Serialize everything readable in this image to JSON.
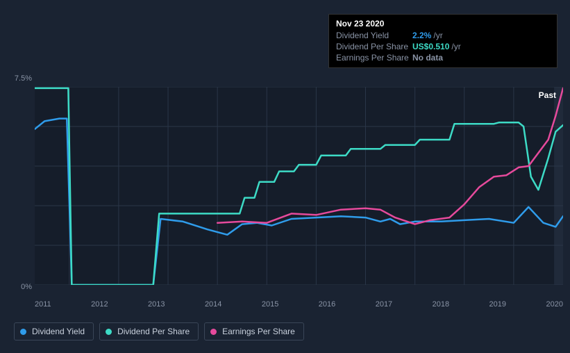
{
  "tooltip": {
    "date": "Nov 23 2020",
    "rows": [
      {
        "label": "Dividend Yield",
        "value": "2.2%",
        "suffix": "/yr",
        "color": "#2f9ceb"
      },
      {
        "label": "Dividend Per Share",
        "value": "US$0.510",
        "suffix": "/yr",
        "color": "#3ddbc6"
      },
      {
        "label": "Earnings Per Share",
        "value": "No data",
        "suffix": "",
        "color": "#8a94a6"
      }
    ]
  },
  "chart": {
    "type": "line",
    "background_color": "#1a2332",
    "plot_bg_left": "#151d2a",
    "plot_bg_right": "#202a3a",
    "grid_color": "#2a3648",
    "text_color": "#8a94a6",
    "past_label": "Past",
    "y_axis": {
      "min": 0,
      "max": 7.5,
      "labels": [
        "7.5%",
        "0%"
      ]
    },
    "x_axis": {
      "labels": [
        "2011",
        "2012",
        "2013",
        "2014",
        "2015",
        "2016",
        "2017",
        "2018",
        "2019",
        "2020"
      ]
    },
    "x_range": [
      2010.3,
      2021.0
    ],
    "series": [
      {
        "name": "Dividend Yield",
        "color": "#2f9ceb",
        "width": 2.5,
        "points": [
          [
            2010.3,
            5.9
          ],
          [
            2010.5,
            6.2
          ],
          [
            2010.8,
            6.3
          ],
          [
            2010.95,
            6.3
          ],
          [
            2011.05,
            0.0
          ],
          [
            2012.7,
            0.0
          ],
          [
            2012.85,
            2.5
          ],
          [
            2013.3,
            2.4
          ],
          [
            2013.8,
            2.1
          ],
          [
            2014.2,
            1.9
          ],
          [
            2014.5,
            2.3
          ],
          [
            2014.8,
            2.35
          ],
          [
            2015.1,
            2.25
          ],
          [
            2015.5,
            2.5
          ],
          [
            2016.0,
            2.55
          ],
          [
            2016.5,
            2.6
          ],
          [
            2017.0,
            2.55
          ],
          [
            2017.3,
            2.4
          ],
          [
            2017.5,
            2.5
          ],
          [
            2017.7,
            2.3
          ],
          [
            2018.0,
            2.4
          ],
          [
            2018.5,
            2.4
          ],
          [
            2019.0,
            2.45
          ],
          [
            2019.5,
            2.5
          ],
          [
            2020.0,
            2.35
          ],
          [
            2020.3,
            2.95
          ],
          [
            2020.6,
            2.35
          ],
          [
            2020.85,
            2.2
          ],
          [
            2021.0,
            2.6
          ]
        ]
      },
      {
        "name": "Dividend Per Share",
        "color": "#3ddbc6",
        "width": 2.5,
        "points": [
          [
            2010.3,
            7.45
          ],
          [
            2010.98,
            7.45
          ],
          [
            2011.05,
            0.0
          ],
          [
            2012.7,
            0.0
          ],
          [
            2012.82,
            2.7
          ],
          [
            2013.0,
            2.7
          ],
          [
            2014.45,
            2.7
          ],
          [
            2014.55,
            3.3
          ],
          [
            2014.75,
            3.3
          ],
          [
            2014.85,
            3.9
          ],
          [
            2015.15,
            3.9
          ],
          [
            2015.25,
            4.3
          ],
          [
            2015.55,
            4.3
          ],
          [
            2015.65,
            4.55
          ],
          [
            2016.0,
            4.55
          ],
          [
            2016.1,
            4.9
          ],
          [
            2016.6,
            4.9
          ],
          [
            2016.7,
            5.15
          ],
          [
            2017.3,
            5.15
          ],
          [
            2017.4,
            5.3
          ],
          [
            2018.0,
            5.3
          ],
          [
            2018.1,
            5.5
          ],
          [
            2018.7,
            5.5
          ],
          [
            2018.8,
            6.1
          ],
          [
            2019.6,
            6.1
          ],
          [
            2019.7,
            6.15
          ],
          [
            2020.1,
            6.15
          ],
          [
            2020.2,
            6.0
          ],
          [
            2020.35,
            4.1
          ],
          [
            2020.5,
            3.6
          ],
          [
            2020.7,
            4.8
          ],
          [
            2020.85,
            5.8
          ],
          [
            2021.0,
            6.05
          ]
        ]
      },
      {
        "name": "Earnings Per Share",
        "color": "#e64a9c",
        "width": 2.5,
        "points": [
          [
            2014.0,
            2.35
          ],
          [
            2014.5,
            2.4
          ],
          [
            2015.0,
            2.35
          ],
          [
            2015.5,
            2.7
          ],
          [
            2016.0,
            2.65
          ],
          [
            2016.5,
            2.85
          ],
          [
            2017.0,
            2.9
          ],
          [
            2017.3,
            2.85
          ],
          [
            2017.6,
            2.55
          ],
          [
            2018.0,
            2.3
          ],
          [
            2018.3,
            2.45
          ],
          [
            2018.7,
            2.55
          ],
          [
            2019.0,
            3.05
          ],
          [
            2019.3,
            3.7
          ],
          [
            2019.6,
            4.1
          ],
          [
            2019.85,
            4.15
          ],
          [
            2020.1,
            4.45
          ],
          [
            2020.3,
            4.5
          ],
          [
            2020.5,
            5.0
          ],
          [
            2020.7,
            5.5
          ],
          [
            2020.85,
            6.4
          ],
          [
            2021.0,
            7.45
          ]
        ]
      }
    ]
  },
  "legend": [
    {
      "label": "Dividend Yield",
      "color": "#2f9ceb"
    },
    {
      "label": "Dividend Per Share",
      "color": "#3ddbc6"
    },
    {
      "label": "Earnings Per Share",
      "color": "#e64a9c"
    }
  ]
}
